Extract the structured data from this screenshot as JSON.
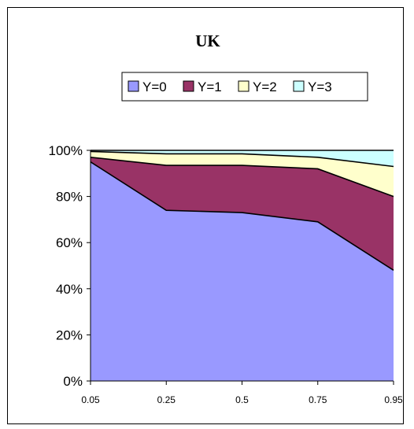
{
  "chart_data": {
    "type": "area",
    "stacked": "percent",
    "title": "UK",
    "x": [
      "0.05",
      "0.25",
      "0.5",
      "0.75",
      "0.95"
    ],
    "series": [
      {
        "name": "Y=0",
        "color": "#9999ff",
        "values": [
          95,
          74,
          73,
          69,
          48
        ]
      },
      {
        "name": "Y=1",
        "color": "#993366",
        "values": [
          2,
          19.5,
          20.5,
          23,
          32
        ]
      },
      {
        "name": "Y=2",
        "color": "#ffffcc",
        "values": [
          2.5,
          5,
          5,
          5,
          13
        ]
      },
      {
        "name": "Y=3",
        "color": "#ccffff",
        "values": [
          0.5,
          1.5,
          1.5,
          3,
          7
        ]
      }
    ],
    "ylim": [
      0,
      100
    ],
    "yticks": [
      "0%",
      "20%",
      "40%",
      "60%",
      "80%",
      "100%"
    ],
    "grid": false,
    "legend": "top"
  }
}
